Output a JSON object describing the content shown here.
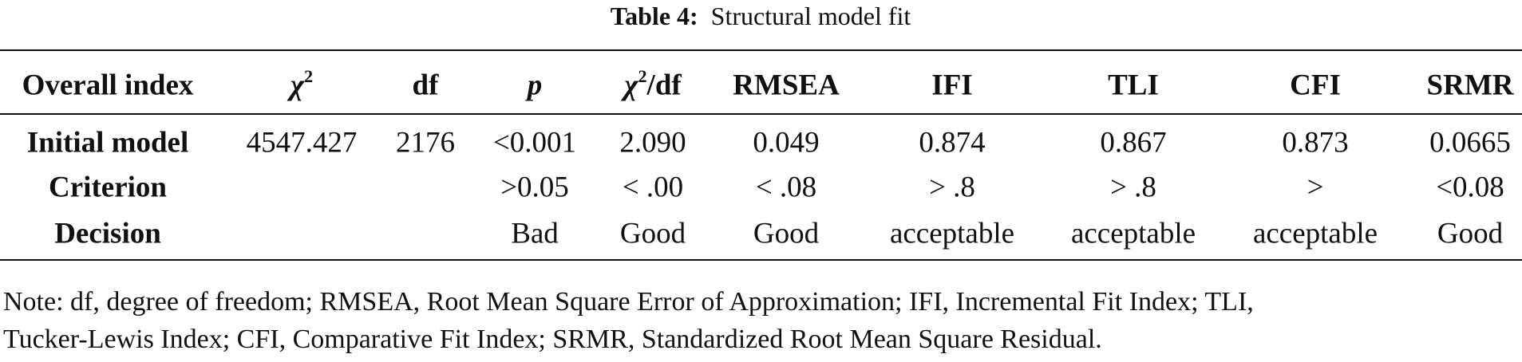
{
  "title": {
    "label": "Table 4:",
    "text": "Structural model fit"
  },
  "table": {
    "header": [
      "Overall index",
      {
        "text": "χ",
        "sup": "2"
      },
      "df",
      "p",
      {
        "text": "χ",
        "sup": "2",
        "after": "/df"
      },
      "RMSEA",
      "IFI",
      "TLI",
      "CFI",
      "SRMR"
    ],
    "rows": [
      [
        "Initial model",
        "4547.427",
        "2176",
        "<0.001",
        "2.090",
        "0.049",
        "0.874",
        "0.867",
        "0.873",
        "0.0665"
      ],
      [
        "Criterion",
        null,
        null,
        ">0.05",
        "< .00",
        "< .08",
        "> .8",
        "> .8",
        ">",
        "<0.08"
      ],
      [
        "Decision",
        null,
        null,
        "Bad",
        "Good",
        "Good",
        "acceptable",
        "acceptable",
        "acceptable",
        "Good"
      ]
    ]
  },
  "note": [
    "Note: df, degree of freedom; RMSEA, Root Mean Square Error of Approximation; IFI, Incremental Fit Index; TLI,",
    "Tucker-Lewis Index; CFI, Comparative Fit Index; SRMR, Standardized Root Mean Square Residual."
  ]
}
